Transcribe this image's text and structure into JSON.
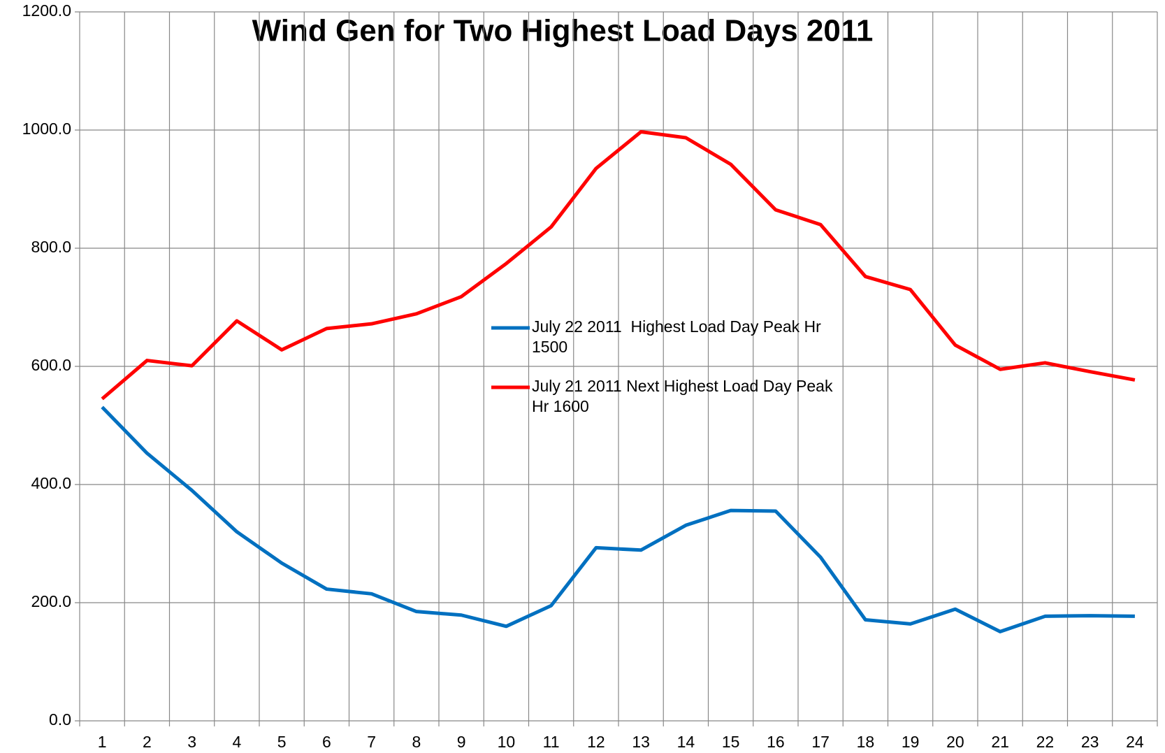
{
  "chart_data": {
    "type": "line",
    "title": "Wind Gen for Two Highest Load Days 2011",
    "categories": [
      "1",
      "2",
      "3",
      "4",
      "5",
      "6",
      "7",
      "8",
      "9",
      "10",
      "11",
      "12",
      "13",
      "14",
      "15",
      "16",
      "17",
      "18",
      "19",
      "20",
      "21",
      "22",
      "23",
      "24"
    ],
    "series": [
      {
        "name": "July 22 2011  Highest Load Day Peak Hr 1500",
        "color": "#0070c0",
        "values": [
          531,
          453,
          390,
          320,
          267,
          223,
          215,
          185,
          179,
          160,
          195,
          293,
          289,
          331,
          356,
          355,
          277,
          171,
          164,
          189,
          151,
          177,
          178,
          177
        ]
      },
      {
        "name": "July 21 2011 Next Highest Load Day Peak Hr 1600",
        "color": "#ff0000",
        "values": [
          545,
          610,
          601,
          677,
          628,
          664,
          672,
          689,
          718,
          774,
          836,
          935,
          997,
          987,
          942,
          865,
          840,
          752,
          730,
          636,
          595,
          606,
          591,
          577
        ]
      }
    ],
    "ylim": [
      0,
      1200
    ],
    "yticks": [
      {
        "value": 0,
        "label": "0.0"
      },
      {
        "value": 200,
        "label": "200.0"
      },
      {
        "value": 400,
        "label": "400.0"
      },
      {
        "value": 600,
        "label": "600.0"
      },
      {
        "value": 800,
        "label": "800.0"
      },
      {
        "value": 1000,
        "label": "1000.0"
      },
      {
        "value": 1200,
        "label": "1200.0"
      }
    ],
    "grid": true
  }
}
